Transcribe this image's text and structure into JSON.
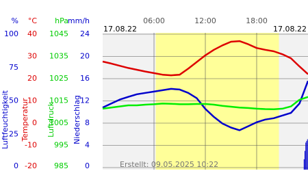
{
  "chart_data": {
    "type": "line",
    "date_labels": [
      "17.08.22",
      "17.08.22"
    ],
    "footer": "Erstellt: 09.05.2025 10:22",
    "xlim": [
      0,
      24
    ],
    "xticks": [
      {
        "value": 6,
        "label": "06:00"
      },
      {
        "value": 12,
        "label": "12:00"
      },
      {
        "value": 18,
        "label": "18:00"
      }
    ],
    "daylight": [
      6.2,
      20.6
    ],
    "daylight_color": "#ffff99",
    "grid": true,
    "y_axes": {
      "y1": {
        "unit": "%",
        "title": "Luftfeuchtigkeit",
        "color": "#0000cc",
        "lim": [
          0,
          100
        ],
        "ticks": [
          0,
          25,
          50,
          75,
          100
        ]
      },
      "y2": {
        "unit": "°C",
        "title": "Temperatur",
        "color": "#dd0000",
        "lim": [
          -20,
          40
        ],
        "ticks": [
          -20,
          -10,
          0,
          10,
          20,
          30,
          40
        ]
      },
      "y3": {
        "unit": "hPa",
        "title": "Luftdruck",
        "color": "#00cc00",
        "lim": [
          985,
          1045
        ],
        "ticks": [
          985,
          995,
          1005,
          1015,
          1025,
          1035,
          1045
        ]
      },
      "y4": {
        "unit": "mm/h",
        "title": "Niederschlag",
        "color": "#0000cc",
        "lim": [
          0,
          24
        ],
        "ticks": [
          0,
          4,
          8,
          12,
          16,
          20,
          24
        ]
      }
    },
    "x": [
      0,
      1,
      2,
      3,
      4,
      5,
      6,
      7,
      8,
      9,
      10,
      11,
      12,
      13,
      14,
      15,
      16,
      17,
      18,
      19,
      20,
      21,
      22,
      23,
      24
    ],
    "series": [
      {
        "name": "Temperatur",
        "type": "line",
        "axis": "y2",
        "color": "#dd0000",
        "values": [
          27.7,
          26.8,
          25.8,
          24.8,
          24,
          23.2,
          22.5,
          21.8,
          21.5,
          21.8,
          24.5,
          27.5,
          30.5,
          33,
          35,
          36.6,
          36.9,
          35.5,
          33.8,
          33,
          32.3,
          31,
          29.2,
          25.5,
          22
        ]
      },
      {
        "name": "Luftfeuchtigkeit",
        "type": "line",
        "axis": "y1",
        "color": "#0000cc",
        "values": [
          45,
          48,
          51,
          53,
          55,
          56,
          57,
          58,
          59,
          58.5,
          56,
          52,
          44,
          38,
          33,
          30,
          28,
          31,
          34,
          36,
          37,
          39,
          41,
          48,
          65
        ]
      },
      {
        "name": "Luftdruck",
        "type": "line",
        "axis": "y3",
        "color": "#00ee00",
        "values": [
          1011.5,
          1012,
          1012.5,
          1013,
          1013,
          1013.3,
          1013.5,
          1013.8,
          1013.7,
          1013.5,
          1013.5,
          1013.6,
          1013.6,
          1013.3,
          1012.8,
          1012.4,
          1012,
          1011.8,
          1011.5,
          1011.3,
          1011.2,
          1011.5,
          1012.5,
          1015.5,
          1016.8
        ]
      },
      {
        "name": "Niederschlag",
        "type": "bar",
        "axis": "y4",
        "color": "#0000cc",
        "x": [
          23.5,
          23.6,
          23.7,
          23.8,
          23.9
        ],
        "values": [
          1.5,
          3,
          4.5,
          4.8,
          5.1
        ]
      }
    ]
  }
}
